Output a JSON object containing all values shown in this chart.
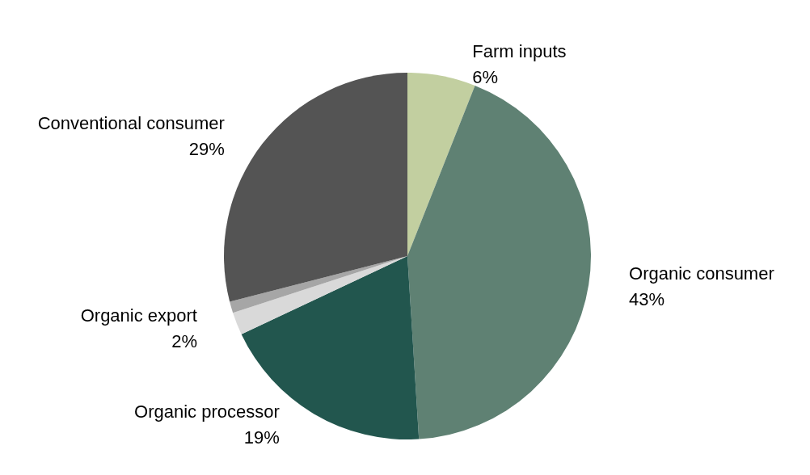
{
  "chart_data": {
    "type": "pie",
    "categories": [
      "Farm inputs",
      "Organic consumer",
      "Organic processor",
      "Organic export",
      null,
      "Conventional consumer"
    ],
    "values": [
      6,
      43,
      19,
      2,
      1,
      29
    ],
    "colors": [
      "#c2cfa0",
      "#5f8173",
      "#22564e",
      "#d9d9d9",
      "#a6a6a6",
      "#545454"
    ],
    "value_labels": [
      "6%",
      "43%",
      "19%",
      "2%",
      null,
      "29%"
    ],
    "legend": false
  }
}
